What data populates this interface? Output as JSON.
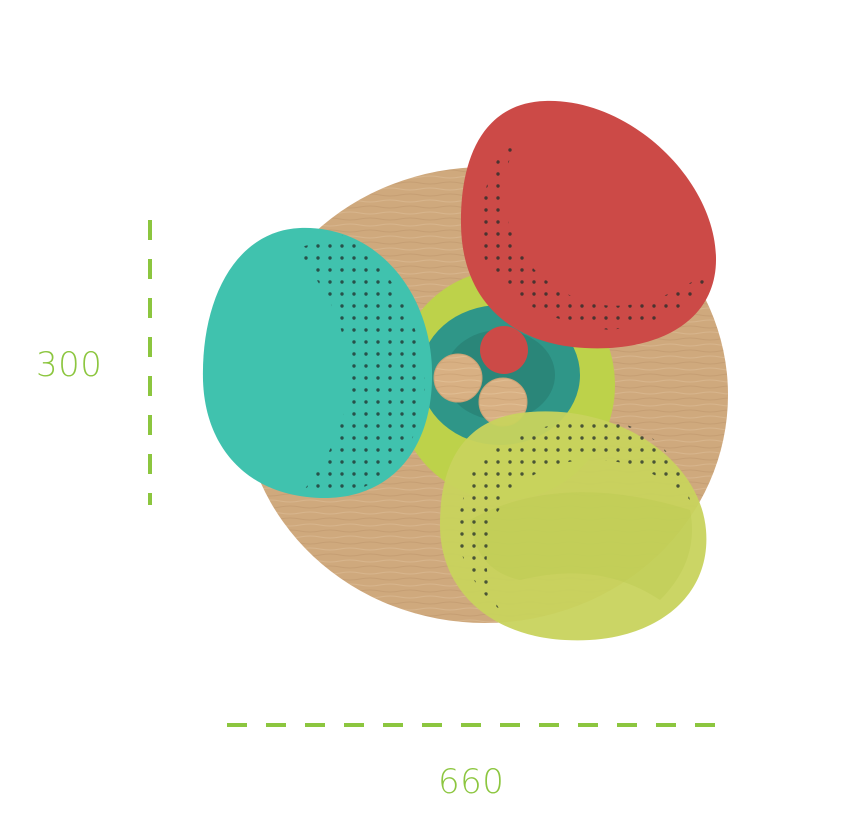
{
  "dimensions": {
    "height": "300",
    "width": "660"
  },
  "colors": {
    "accent": "#8cc63f",
    "wood": "#d9b285",
    "teal": "#3fbfae",
    "red": "#cc4a47",
    "lime": "#c8d35d"
  }
}
